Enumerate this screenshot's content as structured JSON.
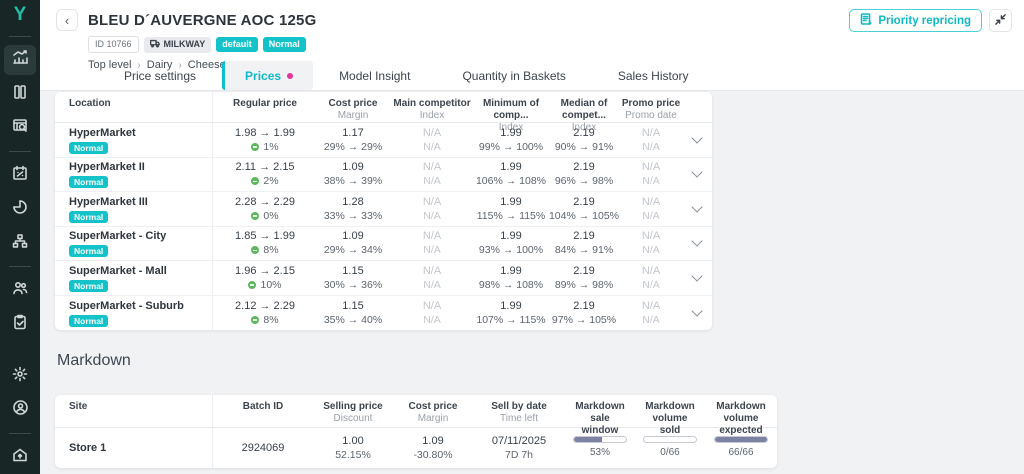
{
  "colors": {
    "accent_teal": "#14c3c9",
    "tab_teal": "#10b9cf",
    "pink_dot": "#e0379b",
    "sidebar_bg": "#182626",
    "logo_teal": "#1fbfa8",
    "progress_fill": "#7d81a2",
    "green_dot": "#5cb75f"
  },
  "sidebar": {
    "logo": "Y"
  },
  "header": {
    "title": "BLEU D´AUVERGNE AOC 125G",
    "id_badge": "ID 10766",
    "brand_badge": "MILKWAY",
    "badge_default": "default",
    "badge_status": "Normal",
    "breadcrumb": {
      "level1": "Top level",
      "level2": "Dairy",
      "level3": "Cheese",
      "sep": "›"
    },
    "back_glyph": "‹",
    "priority_button_label": "Priority repricing"
  },
  "tabs": {
    "t0": "Price settings",
    "t1": "Prices",
    "t2": "Model Insight",
    "t3": "Quantity in Baskets",
    "t4": "Sales History",
    "active": "Prices"
  },
  "prices_table": {
    "columns": {
      "location": "Location",
      "regular": "Regular price",
      "cost": "Cost price",
      "cost_sub": "Margin",
      "main": "Main competitor",
      "main_sub": "Index",
      "min": "Minimum of comp...",
      "min_sub": "Index",
      "median": "Median of compet...",
      "median_sub": "Index",
      "promo": "Promo price",
      "promo_sub": "Promo date"
    },
    "rows": [
      {
        "location": "HyperMarket",
        "status": "Normal",
        "regular": "1.98 → 1.99",
        "change": "1%",
        "cost": "1.17",
        "margin": "29% → 29%",
        "main": "N/A",
        "main_index": "N/A",
        "min": "1.99",
        "min_index": "99% → 100%",
        "median": "2.19",
        "median_index": "90% → 91%",
        "promo": "N/A",
        "promo_date": "N/A"
      },
      {
        "location": "HyperMarket II",
        "status": "Normal",
        "regular": "2.11 → 2.15",
        "change": "2%",
        "cost": "1.09",
        "margin": "38% → 39%",
        "main": "N/A",
        "main_index": "N/A",
        "min": "1.99",
        "min_index": "106% → 108%",
        "median": "2.19",
        "median_index": "96% → 98%",
        "promo": "N/A",
        "promo_date": "N/A"
      },
      {
        "location": "HyperMarket III",
        "status": "Normal",
        "regular": "2.28 → 2.29",
        "change": "0%",
        "cost": "1.28",
        "margin": "33% → 33%",
        "main": "N/A",
        "main_index": "N/A",
        "min": "1.99",
        "min_index": "115% → 115%",
        "median": "2.19",
        "median_index": "104% → 105%",
        "promo": "N/A",
        "promo_date": "N/A"
      },
      {
        "location": "SuperMarket - City",
        "status": "Normal",
        "regular": "1.85 → 1.99",
        "change": "8%",
        "cost": "1.09",
        "margin": "29% → 34%",
        "main": "N/A",
        "main_index": "N/A",
        "min": "1.99",
        "min_index": "93% → 100%",
        "median": "2.19",
        "median_index": "84% → 91%",
        "promo": "N/A",
        "promo_date": "N/A"
      },
      {
        "location": "SuperMarket - Mall",
        "status": "Normal",
        "regular": "1.96 → 2.15",
        "change": "10%",
        "cost": "1.15",
        "margin": "30% → 36%",
        "main": "N/A",
        "main_index": "N/A",
        "min": "1.99",
        "min_index": "98% → 108%",
        "median": "2.19",
        "median_index": "89% → 98%",
        "promo": "N/A",
        "promo_date": "N/A"
      },
      {
        "location": "SuperMarket - Suburb",
        "status": "Normal",
        "regular": "2.12 → 2.29",
        "change": "8%",
        "cost": "1.15",
        "margin": "35% → 40%",
        "main": "N/A",
        "main_index": "N/A",
        "min": "1.99",
        "min_index": "107% → 115%",
        "median": "2.19",
        "median_index": "97% → 105%",
        "promo": "N/A",
        "promo_date": "N/A"
      }
    ]
  },
  "markdown": {
    "title": "Markdown",
    "columns": {
      "site": "Site",
      "batch": "Batch ID",
      "selling": "Selling price",
      "selling_sub": "Discount",
      "cost": "Cost price",
      "cost_sub": "Margin",
      "sellby": "Sell by date",
      "sellby_sub": "Time left",
      "window_l1": "Markdown sale",
      "window_l2": "window",
      "sold_l1": "Markdown volume",
      "sold_l2": "sold",
      "exp_l1": "Markdown volume",
      "exp_l2": "expected"
    },
    "rows": [
      {
        "site": "Store 1",
        "batch_id": "2924069",
        "selling": "1.00",
        "discount": "52.15%",
        "cost": "1.09",
        "margin": "-30.80%",
        "sell_by": "07/11/2025",
        "time_left": "7D 7h",
        "window_pct": 53,
        "window_label": "53%",
        "sold_pct": 0,
        "sold_label": "0/66",
        "expected_pct": 100,
        "expected_label": "66/66"
      }
    ]
  }
}
